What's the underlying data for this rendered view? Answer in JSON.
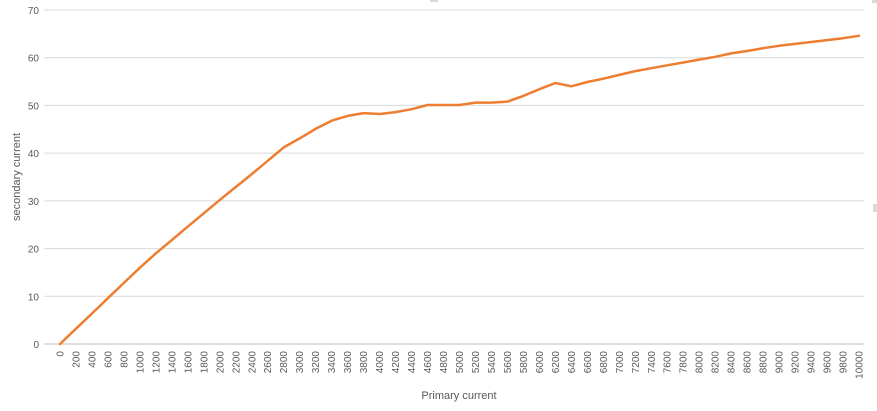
{
  "chart_data": {
    "type": "line",
    "title": "",
    "xlabel": "Primary current",
    "ylabel": "secondary current",
    "ylim": [
      0,
      70
    ],
    "yticks": [
      0,
      10,
      20,
      30,
      40,
      50,
      60,
      70
    ],
    "grid": "horizontal",
    "legend": "none",
    "x": [
      0,
      200,
      400,
      600,
      800,
      1000,
      1200,
      1400,
      1600,
      1800,
      2000,
      2200,
      2400,
      2600,
      2800,
      3000,
      3200,
      3400,
      3600,
      3800,
      4000,
      4200,
      4400,
      4600,
      4800,
      5000,
      5200,
      5400,
      5600,
      5800,
      6000,
      6200,
      6400,
      6600,
      6800,
      7000,
      7200,
      7400,
      7600,
      7800,
      8000,
      8200,
      8400,
      8600,
      8800,
      9000,
      9200,
      9400,
      9600,
      9800,
      10000
    ],
    "series": [
      {
        "name": "",
        "color": "#ED7D31",
        "values": [
          0,
          3.2,
          6.4,
          9.6,
          12.8,
          16.0,
          19.0,
          21.8,
          24.6,
          27.4,
          30.2,
          32.9,
          35.6,
          38.4,
          41.2,
          43.1,
          45.1,
          46.8,
          47.8,
          48.4,
          48.2,
          48.6,
          49.2,
          50.1,
          50.1,
          50.1,
          50.6,
          50.6,
          50.8,
          52.0,
          53.4,
          54.7,
          54.0,
          54.9,
          55.6,
          56.4,
          57.2,
          57.8,
          58.4,
          59.0,
          59.6,
          60.2,
          60.9,
          61.4,
          62.0,
          62.5,
          62.9,
          63.3,
          63.7,
          64.1,
          64.6
        ]
      }
    ]
  }
}
